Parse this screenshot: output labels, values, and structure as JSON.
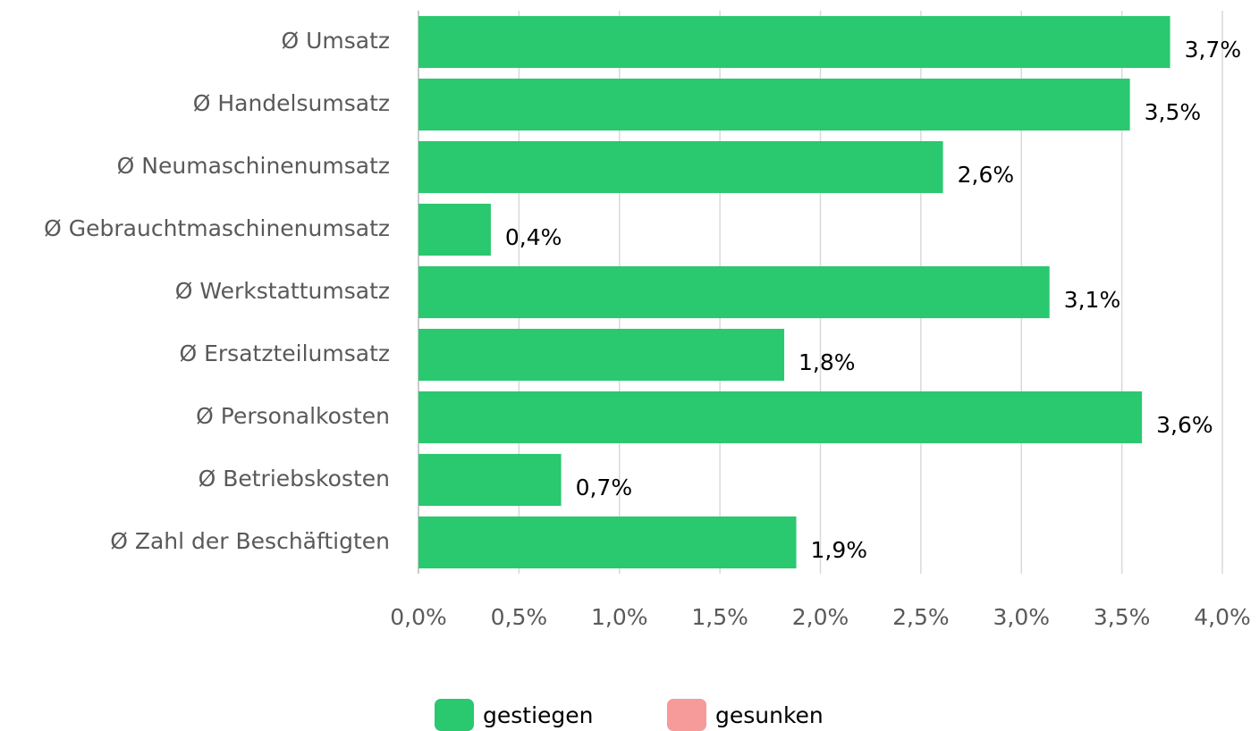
{
  "chart_data": {
    "type": "bar",
    "orientation": "horizontal",
    "categories": [
      "Ø Umsatz",
      "Ø Handelsumsatz",
      "Ø Neumaschinenumsatz",
      "Ø Gebrauchtmaschinenumsatz",
      "Ø Werkstattumsatz",
      "Ø Ersatzteilumsatz",
      "Ø Personalkosten",
      "Ø Betriebskosten",
      "Ø Zahl der Beschäftigten"
    ],
    "series": [
      {
        "name": "gestiegen",
        "color": "#2ac86f",
        "values": [
          3.74,
          3.54,
          2.61,
          0.36,
          3.14,
          1.82,
          3.6,
          0.71,
          1.88
        ],
        "value_labels": [
          "3,7%",
          "3,5%",
          "2,6%",
          "0,4%",
          "3,1%",
          "1,8%",
          "3,6%",
          "0,7%",
          "1,9%"
        ]
      },
      {
        "name": "gesunken",
        "color": "#f79a9a",
        "values": [
          null,
          null,
          null,
          null,
          null,
          null,
          null,
          null,
          null
        ]
      }
    ],
    "xlim": [
      0,
      4
    ],
    "xticks": [
      {
        "value": 0,
        "label": "0,0%"
      },
      {
        "value": 0.5,
        "label": "0,5%"
      },
      {
        "value": 1,
        "label": "1,0%"
      },
      {
        "value": 1.5,
        "label": "1,5%"
      },
      {
        "value": 2,
        "label": "2,0%"
      },
      {
        "value": 2.5,
        "label": "2,5%"
      },
      {
        "value": 3,
        "label": "3,0%"
      },
      {
        "value": 3.5,
        "label": "3,5%"
      },
      {
        "value": 4,
        "label": "4,0%"
      }
    ],
    "grid": true,
    "legend": "bottom"
  }
}
